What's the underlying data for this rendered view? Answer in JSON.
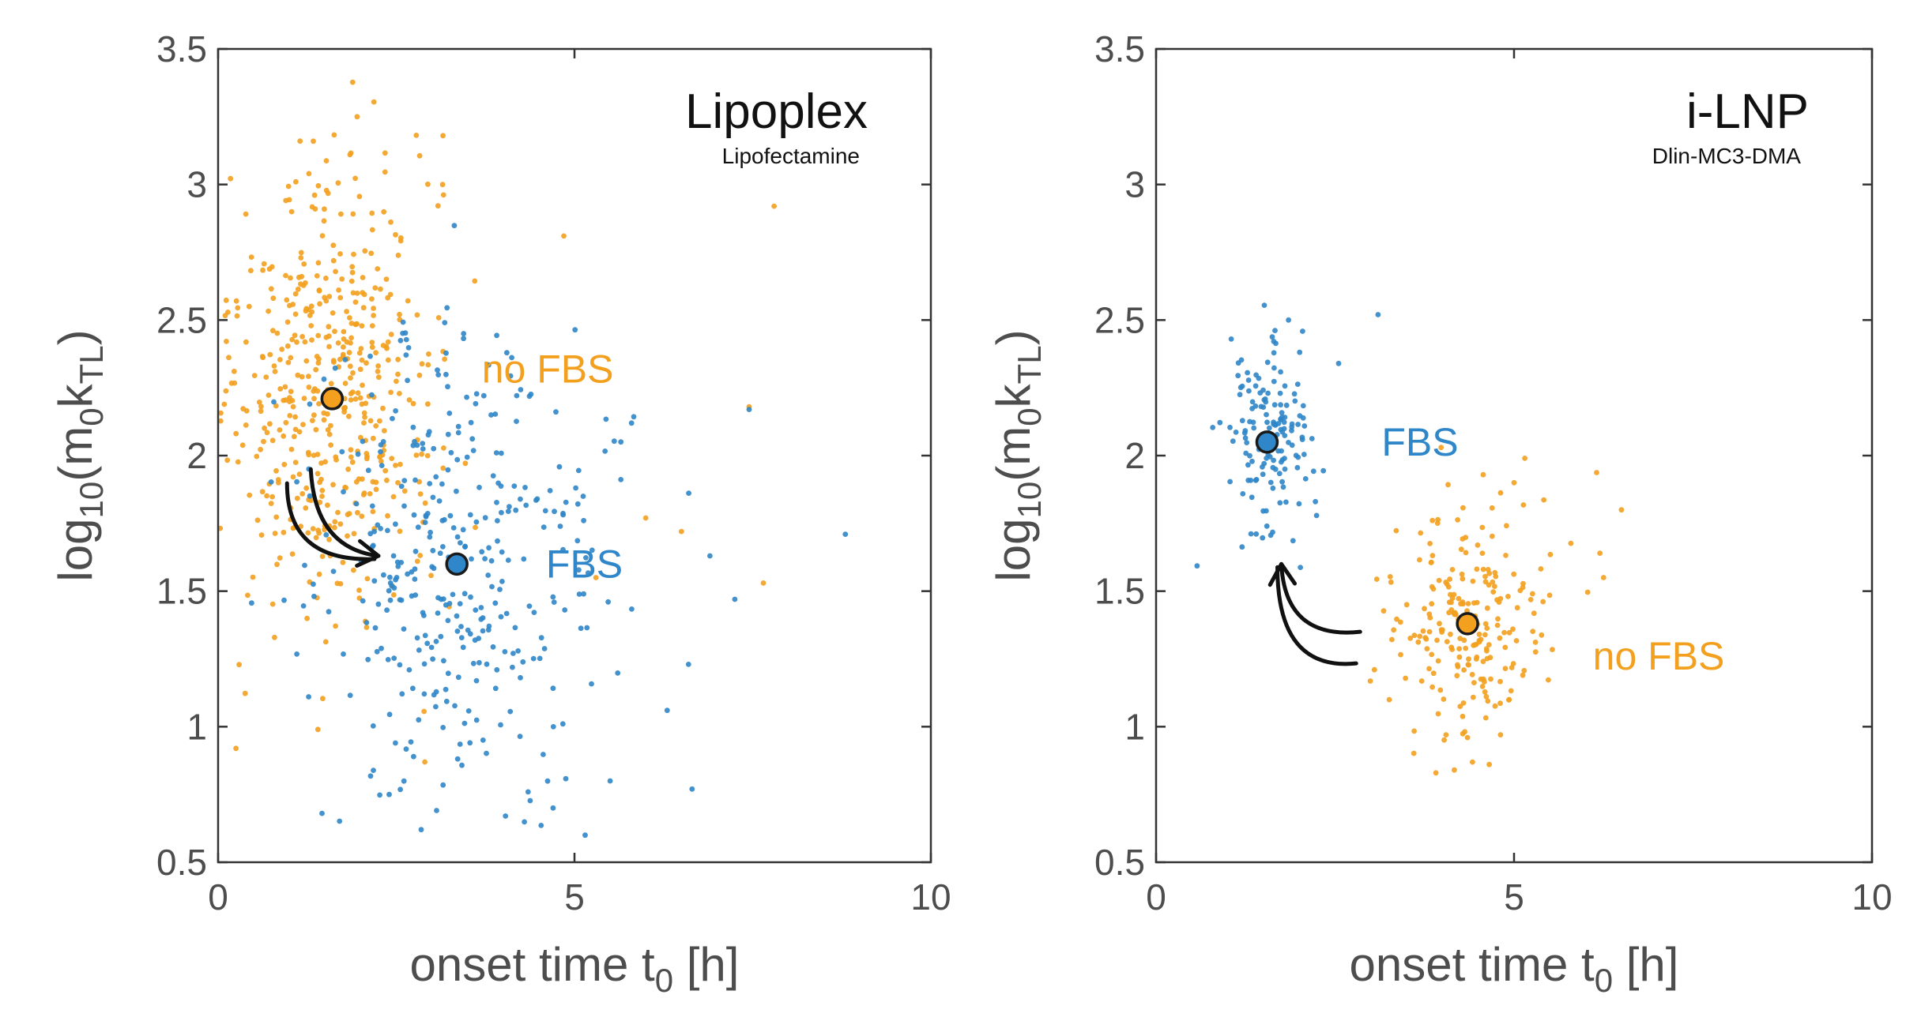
{
  "colors": {
    "no_fbs": "#f2a01e",
    "fbs": "#2f86c8",
    "axis": "#333333",
    "text": "#4d4d4d",
    "arrow": "#111111"
  },
  "chart_data": [
    {
      "type": "scatter",
      "title": "Lipoplex",
      "subtitle": "Lipofectamine",
      "xlabel": {
        "main": "onset time t",
        "sub": "0",
        "suffix": " [h]"
      },
      "ylabel": {
        "prefix": "log",
        "sub1": "10",
        "mid": "(m",
        "sub2": "0",
        "mid2": "k",
        "sub3": "TL",
        "suffix": ")"
      },
      "xlim": [
        0,
        10
      ],
      "ylim": [
        0.5,
        3.5
      ],
      "xticks": [
        "0",
        "5",
        "10"
      ],
      "yticks": [
        "0.5",
        "1",
        "1.5",
        "2",
        "2.5",
        "3",
        "3.5"
      ],
      "grid": false,
      "arrow": {
        "from": [
          1.3,
          1.95
        ],
        "to": [
          2.25,
          1.63
        ],
        "direction": "no FBS to FBS"
      },
      "series": [
        {
          "name": "no FBS",
          "color": "#f2a01e",
          "label_pos": [
            3.7,
            2.27
          ],
          "mean": [
            1.6,
            2.21
          ],
          "spread": [
            0.75,
            0.42
          ],
          "n": 470,
          "outliers": [
            [
              1.95,
              3.25
            ],
            [
              1.85,
              3.11
            ],
            [
              1.15,
              3.16
            ],
            [
              3.15,
              3.0
            ],
            [
              4.85,
              2.81
            ],
            [
              7.8,
              2.92
            ],
            [
              7.45,
              2.18
            ],
            [
              6.0,
              1.77
            ],
            [
              7.65,
              1.53
            ],
            [
              5.3,
              1.55
            ],
            [
              0.25,
              0.92
            ],
            [
              2.9,
              0.87
            ],
            [
              1.4,
              0.99
            ],
            [
              6.5,
              1.72
            ]
          ]
        },
        {
          "name": "FBS",
          "color": "#2f86c8",
          "label_pos": [
            4.6,
            1.55
          ],
          "mean": [
            3.35,
            1.6
          ],
          "spread": [
            1.05,
            0.42
          ],
          "n": 360,
          "outliers": [
            [
              8.8,
              1.71
            ],
            [
              7.45,
              2.17
            ],
            [
              7.25,
              1.47
            ],
            [
              6.9,
              1.63
            ],
            [
              6.6,
              1.23
            ],
            [
              6.65,
              0.77
            ],
            [
              5.15,
              0.6
            ],
            [
              4.7,
              0.7
            ],
            [
              5.5,
              0.8
            ],
            [
              2.4,
              0.75
            ],
            [
              5.8,
              2.12
            ],
            [
              6.3,
              1.06
            ]
          ]
        }
      ]
    },
    {
      "type": "scatter",
      "title": "i-LNP",
      "subtitle": "Dlin-MC3-DMA",
      "xlabel": {
        "main": "onset time t",
        "sub": "0",
        "suffix": " [h]"
      },
      "ylabel": {
        "prefix": "log",
        "sub1": "10",
        "mid": "(m",
        "sub2": "0",
        "mid2": "k",
        "sub3": "TL",
        "suffix": ")"
      },
      "xlim": [
        0,
        10
      ],
      "ylim": [
        0.5,
        3.5
      ],
      "xticks": [
        "0",
        "5",
        "10"
      ],
      "yticks": [
        "0.5",
        "1",
        "1.5",
        "2",
        "2.5",
        "3",
        "3.5"
      ],
      "grid": false,
      "arrow": {
        "from": [
          2.85,
          1.35
        ],
        "to": [
          1.75,
          1.6
        ],
        "direction": "no FBS to FBS"
      },
      "series": [
        {
          "name": "FBS",
          "color": "#2f86c8",
          "label_pos": [
            3.15,
            2.0
          ],
          "mean": [
            1.55,
            2.05
          ],
          "spread": [
            0.3,
            0.17
          ],
          "n": 150,
          "outliers": [
            [
              3.1,
              2.52
            ],
            [
              1.85,
              2.5
            ],
            [
              2.55,
              2.34
            ],
            [
              1.05,
              2.43
            ]
          ]
        },
        {
          "name": "no FBS",
          "color": "#f2a01e",
          "label_pos": [
            6.1,
            1.21
          ],
          "mean": [
            4.35,
            1.38
          ],
          "spread": [
            0.55,
            0.2
          ],
          "n": 220,
          "outliers": [
            [
              5.15,
              1.99
            ],
            [
              6.5,
              1.8
            ],
            [
              6.25,
              1.55
            ],
            [
              6.2,
              1.64
            ],
            [
              4.05,
              0.97
            ],
            [
              4.35,
              0.96
            ],
            [
              5.0,
              1.9
            ],
            [
              3.05,
              1.21
            ]
          ]
        }
      ]
    }
  ]
}
